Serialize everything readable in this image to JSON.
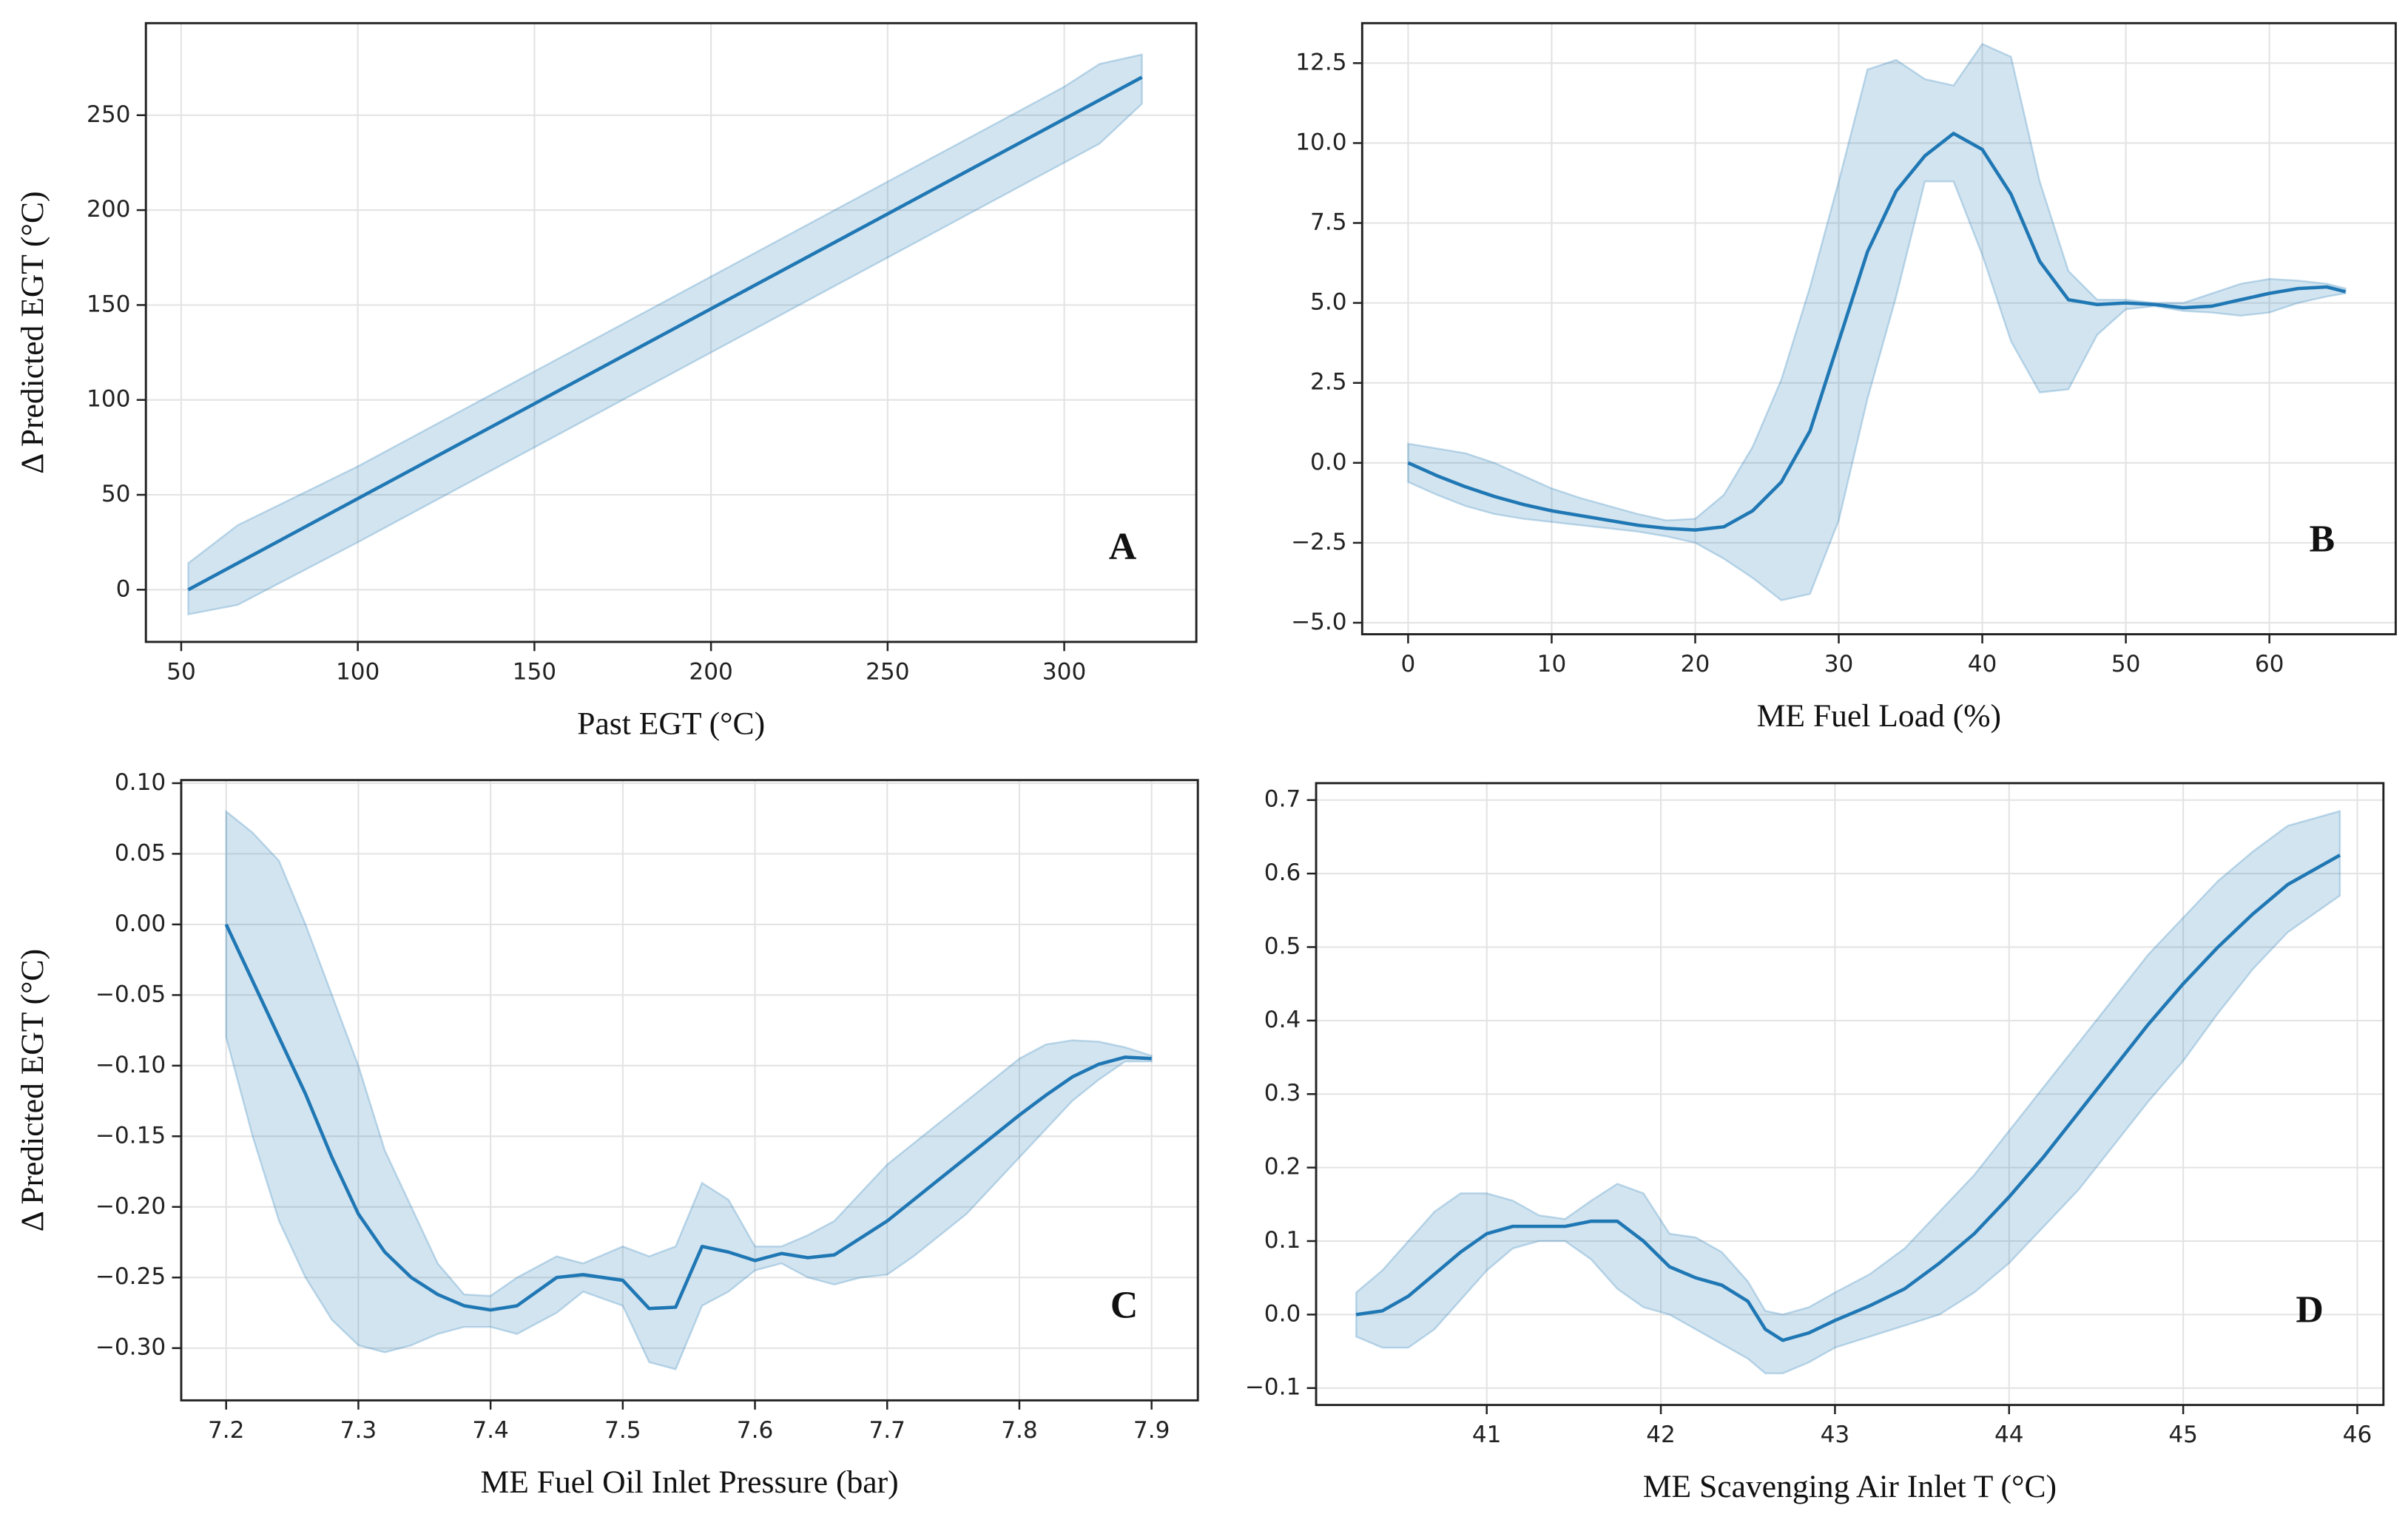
{
  "chart_data": [
    {
      "type": "line",
      "xlabel": "Past EGT (°C)",
      "ylabel": "Δ Predicted EGT (°C)",
      "annotation": "A",
      "grid": true,
      "x": [
        52,
        66,
        100,
        150,
        200,
        250,
        300,
        310,
        322
      ],
      "series": [
        {
          "color": "#1f77b4",
          "values": [
            0,
            14,
            48,
            98,
            148,
            198,
            248,
            258,
            270
          ],
          "upper": [
            14,
            34,
            65,
            115,
            165,
            215,
            265,
            277,
            282
          ],
          "lower": [
            -13,
            -8,
            25,
            75,
            125,
            175,
            225,
            235,
            256
          ]
        }
      ],
      "xlim": [
        40,
        337.4
      ],
      "ylim": [
        -27.5,
        298.5
      ],
      "xticks": [
        50,
        100,
        150,
        200,
        250,
        300
      ],
      "yticks": [
        0,
        50,
        100,
        150,
        200,
        250
      ]
    },
    {
      "type": "line",
      "xlabel": "ME Fuel Load (%)",
      "annotation": "B",
      "grid": true,
      "x": [
        0,
        2,
        4,
        6,
        8,
        10,
        12,
        14,
        16,
        18,
        20,
        22,
        24,
        26,
        28,
        30,
        32,
        34,
        36,
        38,
        40,
        42,
        44,
        46,
        48,
        50,
        52,
        54,
        56,
        58,
        60,
        62,
        64,
        65.3
      ],
      "series": [
        {
          "color": "#1f77b4",
          "values": [
            0,
            -0.4,
            -0.75,
            -1.05,
            -1.3,
            -1.5,
            -1.65,
            -1.8,
            -1.95,
            -2.05,
            -2.1,
            -2.0,
            -1.5,
            -0.6,
            1.0,
            3.8,
            6.6,
            8.5,
            9.6,
            10.3,
            9.8,
            8.4,
            6.3,
            5.1,
            4.95,
            5.0,
            4.95,
            4.85,
            4.9,
            5.1,
            5.3,
            5.45,
            5.5,
            5.35
          ],
          "upper": [
            0.6,
            0.45,
            0.3,
            0,
            -0.4,
            -0.8,
            -1.1,
            -1.35,
            -1.6,
            -1.8,
            -1.75,
            -1.0,
            0.5,
            2.6,
            5.5,
            8.8,
            12.3,
            12.6,
            12.0,
            11.8,
            13.1,
            12.7,
            8.8,
            6.0,
            5.1,
            5.1,
            5.0,
            5.0,
            5.3,
            5.6,
            5.75,
            5.7,
            5.6,
            5.45
          ],
          "lower": [
            -0.6,
            -1.0,
            -1.35,
            -1.6,
            -1.75,
            -1.85,
            -1.95,
            -2.05,
            -2.15,
            -2.3,
            -2.5,
            -3.0,
            -3.6,
            -4.3,
            -4.1,
            -1.8,
            2.0,
            5.2,
            8.8,
            8.8,
            6.5,
            3.8,
            2.2,
            2.3,
            4.0,
            4.8,
            4.9,
            4.75,
            4.7,
            4.6,
            4.7,
            5.0,
            5.2,
            5.3
          ]
        }
      ],
      "xlim": [
        -3.2,
        68.8
      ],
      "ylim": [
        -5.36,
        13.75
      ],
      "xticks": [
        0,
        10,
        20,
        30,
        40,
        50,
        60
      ],
      "yticks": [
        {
          "value": -5,
          "label": "−5.0"
        },
        {
          "value": -2.5,
          "label": "−2.5"
        },
        {
          "value": 0,
          "label": "0.0"
        },
        {
          "value": 2.5,
          "label": "2.5"
        },
        {
          "value": 5,
          "label": "5.0"
        },
        {
          "value": 7.5,
          "label": "7.5"
        },
        {
          "value": 10,
          "label": "10.0"
        },
        {
          "value": 12.5,
          "label": "12.5"
        }
      ]
    },
    {
      "type": "line",
      "xlabel": "ME Fuel Oil Inlet Pressure (bar)",
      "ylabel": "Δ Predicted EGT (°C)",
      "annotation": "C",
      "grid": true,
      "x": [
        7.2,
        7.22,
        7.24,
        7.26,
        7.28,
        7.3,
        7.32,
        7.34,
        7.36,
        7.38,
        7.4,
        7.42,
        7.45,
        7.47,
        7.5,
        7.52,
        7.54,
        7.56,
        7.58,
        7.6,
        7.62,
        7.64,
        7.66,
        7.68,
        7.7,
        7.72,
        7.74,
        7.76,
        7.78,
        7.8,
        7.82,
        7.84,
        7.86,
        7.88,
        7.9
      ],
      "series": [
        {
          "color": "#1f77b4",
          "values": [
            0,
            -0.04,
            -0.08,
            -0.12,
            -0.165,
            -0.205,
            -0.232,
            -0.25,
            -0.262,
            -0.27,
            -0.273,
            -0.27,
            -0.25,
            -0.248,
            -0.252,
            -0.272,
            -0.271,
            -0.228,
            -0.232,
            -0.238,
            -0.233,
            -0.236,
            -0.234,
            -0.222,
            -0.21,
            -0.195,
            -0.18,
            -0.165,
            -0.15,
            -0.135,
            -0.121,
            -0.108,
            -0.099,
            -0.094,
            -0.095
          ],
          "upper": [
            0.08,
            0.065,
            0.045,
            0.0,
            -0.05,
            -0.1,
            -0.16,
            -0.2,
            -0.24,
            -0.262,
            -0.263,
            -0.25,
            -0.235,
            -0.24,
            -0.228,
            -0.235,
            -0.228,
            -0.183,
            -0.195,
            -0.228,
            -0.228,
            -0.22,
            -0.21,
            -0.19,
            -0.17,
            -0.155,
            -0.14,
            -0.125,
            -0.11,
            -0.095,
            -0.085,
            -0.082,
            -0.083,
            -0.087,
            -0.093
          ],
          "lower": [
            -0.08,
            -0.15,
            -0.21,
            -0.25,
            -0.28,
            -0.298,
            -0.303,
            -0.298,
            -0.29,
            -0.285,
            -0.285,
            -0.29,
            -0.275,
            -0.26,
            -0.27,
            -0.31,
            -0.315,
            -0.27,
            -0.26,
            -0.245,
            -0.24,
            -0.25,
            -0.255,
            -0.25,
            -0.248,
            -0.235,
            -0.22,
            -0.205,
            -0.185,
            -0.165,
            -0.145,
            -0.125,
            -0.11,
            -0.097,
            -0.097
          ]
        }
      ],
      "xlim": [
        7.166,
        7.935
      ],
      "ylim": [
        -0.337,
        0.1022
      ],
      "xticks": [
        7.2,
        7.3,
        7.4,
        7.5,
        7.6,
        7.7,
        7.8,
        7.9
      ],
      "yticks": [
        {
          "value": -0.3,
          "label": "−0.30"
        },
        {
          "value": -0.25,
          "label": "−0.25"
        },
        {
          "value": -0.2,
          "label": "−0.20"
        },
        {
          "value": -0.15,
          "label": "−0.15"
        },
        {
          "value": -0.1,
          "label": "−0.10"
        },
        {
          "value": -0.05,
          "label": "−0.05"
        },
        {
          "value": 0,
          "label": "0.00"
        },
        {
          "value": 0.05,
          "label": "0.05"
        },
        {
          "value": 0.1,
          "label": "0.10"
        }
      ]
    },
    {
      "type": "line",
      "xlabel": "ME Scavenging Air Inlet T (°C)",
      "annotation": "D",
      "grid": true,
      "x": [
        40.25,
        40.4,
        40.55,
        40.7,
        40.85,
        41.0,
        41.15,
        41.3,
        41.45,
        41.6,
        41.75,
        41.9,
        42.05,
        42.2,
        42.35,
        42.5,
        42.6,
        42.7,
        42.85,
        43.0,
        43.2,
        43.4,
        43.6,
        43.8,
        44.0,
        44.2,
        44.4,
        44.6,
        44.8,
        45.0,
        45.2,
        45.4,
        45.6,
        45.9
      ],
      "series": [
        {
          "color": "#1f77b4",
          "values": [
            0,
            0.005,
            0.025,
            0.055,
            0.085,
            0.11,
            0.12,
            0.12,
            0.12,
            0.127,
            0.127,
            0.1,
            0.065,
            0.05,
            0.04,
            0.018,
            -0.02,
            -0.035,
            -0.025,
            -0.008,
            0.012,
            0.035,
            0.07,
            0.11,
            0.16,
            0.215,
            0.275,
            0.335,
            0.395,
            0.45,
            0.5,
            0.545,
            0.585,
            0.625
          ],
          "upper": [
            0.03,
            0.06,
            0.1,
            0.14,
            0.165,
            0.165,
            0.155,
            0.135,
            0.13,
            0.155,
            0.178,
            0.165,
            0.11,
            0.105,
            0.085,
            0.045,
            0.005,
            0.0,
            0.01,
            0.03,
            0.055,
            0.09,
            0.14,
            0.19,
            0.25,
            0.31,
            0.37,
            0.43,
            0.49,
            0.54,
            0.59,
            0.63,
            0.665,
            0.685
          ],
          "lower": [
            -0.03,
            -0.045,
            -0.045,
            -0.02,
            0.02,
            0.06,
            0.09,
            0.1,
            0.1,
            0.075,
            0.035,
            0.01,
            0.0,
            -0.02,
            -0.04,
            -0.06,
            -0.08,
            -0.08,
            -0.065,
            -0.045,
            -0.03,
            -0.015,
            0.0,
            0.03,
            0.07,
            0.12,
            0.17,
            0.23,
            0.29,
            0.345,
            0.41,
            0.47,
            0.52,
            0.57
          ]
        }
      ],
      "xlim": [
        40.02,
        46.15
      ],
      "ylim": [
        -0.123,
        0.723
      ],
      "xticks": [
        41,
        42,
        43,
        44,
        45,
        46
      ],
      "yticks": [
        {
          "value": -0.1,
          "label": "−0.1"
        },
        {
          "value": 0,
          "label": "0.0"
        },
        {
          "value": 0.1,
          "label": "0.1"
        },
        {
          "value": 0.2,
          "label": "0.2"
        },
        {
          "value": 0.3,
          "label": "0.3"
        },
        {
          "value": 0.4,
          "label": "0.4"
        },
        {
          "value": 0.5,
          "label": "0.5"
        },
        {
          "value": 0.6,
          "label": "0.6"
        },
        {
          "value": 0.7,
          "label": "0.7"
        }
      ]
    }
  ]
}
